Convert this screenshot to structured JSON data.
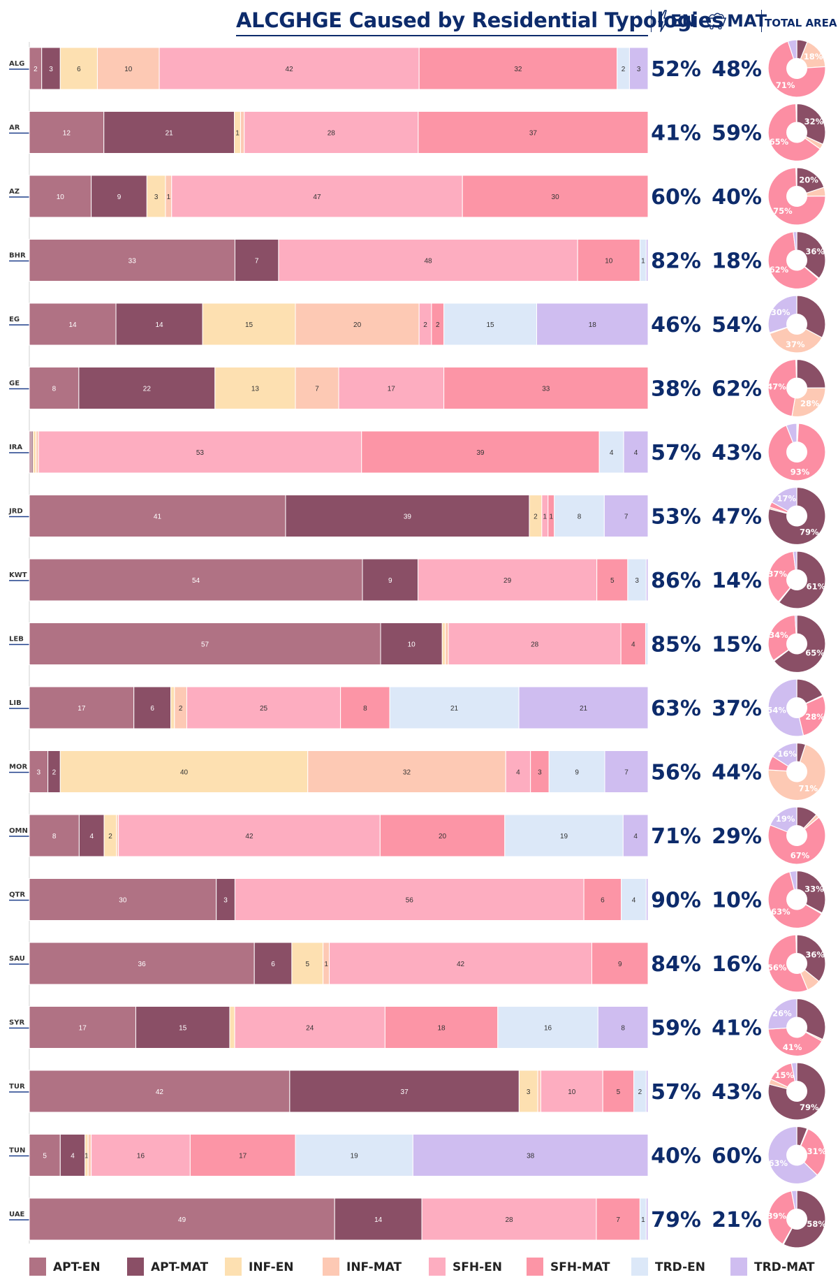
{
  "title": "ALCGHGE Caused by Residential Typologies",
  "header": {
    "en_label": "EN",
    "mat_label": "MAT",
    "total_label": "TOTAL AREA"
  },
  "chart_data": {
    "type": "bar",
    "orientation": "horizontal-stacked-100",
    "categories": [
      "ALG",
      "AR",
      "AZ",
      "BHR",
      "EG",
      "GE",
      "IRA",
      "JRD",
      "KWT",
      "LEB",
      "LIB",
      "MOR",
      "OMN",
      "QTR",
      "SAU",
      "SYR",
      "TUR",
      "TUN",
      "UAE"
    ],
    "series": [
      {
        "name": "APT-EN",
        "color": "#b07284",
        "values": [
          2,
          12,
          10,
          33,
          14,
          8,
          0.3,
          41,
          54,
          57,
          17,
          3,
          8,
          30,
          36,
          17,
          42,
          5,
          49
        ]
      },
      {
        "name": "APT-MAT",
        "color": "#8a4f66",
        "values": [
          3,
          21,
          9,
          7,
          14,
          22,
          0.3,
          39,
          9,
          10,
          6,
          2,
          4,
          3,
          6,
          15,
          37,
          4,
          14
        ]
      },
      {
        "name": "INF-EN",
        "color": "#fde0b1",
        "values": [
          6,
          1,
          3,
          0,
          15,
          13,
          0.5,
          2,
          0,
          0.5,
          0.6,
          40,
          2,
          0,
          5,
          0.8,
          3,
          0.5,
          0
        ]
      },
      {
        "name": "INF-MAT",
        "color": "#fdc9b4",
        "values": [
          10,
          0.6,
          1,
          0,
          20,
          7,
          0.4,
          0,
          0,
          0.5,
          2,
          32,
          0.3,
          0,
          1,
          0,
          0.5,
          0.5,
          0
        ]
      },
      {
        "name": "SFH-EN",
        "color": "#fdadc0",
        "values": [
          42,
          28,
          47,
          48,
          2,
          17,
          53,
          1,
          29,
          28,
          25,
          4,
          42,
          56,
          42,
          24,
          10,
          16,
          28
        ]
      },
      {
        "name": "SFH-MAT",
        "color": "#fc95a6",
        "values": [
          32,
          37,
          30,
          10,
          2,
          33,
          39,
          1,
          5,
          4,
          8,
          3,
          20,
          6,
          9,
          18,
          5,
          17,
          7
        ]
      },
      {
        "name": "TRD-EN",
        "color": "#dce8f8",
        "values": [
          2,
          0,
          0,
          1,
          15,
          0,
          4,
          8,
          3,
          0.4,
          21,
          9,
          19,
          4,
          0,
          16,
          2,
          19,
          1
        ]
      },
      {
        "name": "TRD-MAT",
        "color": "#cfbdf0",
        "values": [
          3,
          0,
          0,
          0.3,
          18,
          0,
          4,
          7,
          0.3,
          0,
          21,
          7,
          4,
          0.3,
          0,
          8,
          0.3,
          38,
          0.3
        ]
      }
    ],
    "data_labels": [
      [
        "2",
        "3",
        "6",
        "10",
        "42",
        "32",
        "2",
        "3"
      ],
      [
        "12",
        "21",
        "1",
        "",
        "28",
        "37",
        "",
        ""
      ],
      [
        "10",
        "9",
        "3",
        "1",
        "47",
        "30",
        "",
        ""
      ],
      [
        "33",
        "7",
        "",
        "",
        "48",
        "10",
        "1",
        ""
      ],
      [
        "14",
        "14",
        "15",
        "20",
        "2",
        "2",
        "15",
        "18"
      ],
      [
        "8",
        "22",
        "13",
        "7",
        "17",
        "33",
        "",
        ""
      ],
      [
        "",
        "",
        "",
        "",
        "53",
        "39",
        "4",
        "4"
      ],
      [
        "41",
        "39",
        "2",
        "",
        "1",
        "1",
        "8",
        "7"
      ],
      [
        "54",
        "9",
        "",
        "",
        "29",
        "5",
        "3",
        ""
      ],
      [
        "57",
        "10",
        "",
        "",
        "28",
        "4",
        "",
        ""
      ],
      [
        "17",
        "6",
        "",
        "2",
        "25",
        "8",
        "21",
        "21"
      ],
      [
        "3",
        "2",
        "40",
        "32",
        "4",
        "3",
        "9",
        "7"
      ],
      [
        "8",
        "4",
        "2",
        "",
        "42",
        "20",
        "19",
        "4"
      ],
      [
        "30",
        "3",
        "",
        "",
        "56",
        "6",
        "4",
        ""
      ],
      [
        "36",
        "6",
        "5",
        "1",
        "42",
        "9",
        "",
        ""
      ],
      [
        "17",
        "15",
        "",
        "",
        "24",
        "18",
        "16",
        "8"
      ],
      [
        "42",
        "37",
        "3",
        "",
        "10",
        "5",
        "2",
        ""
      ],
      [
        "5",
        "4",
        "1",
        "",
        "16",
        "17",
        "19",
        "38"
      ],
      [
        "49",
        "14",
        "",
        "",
        "28",
        "7",
        "1",
        ""
      ]
    ],
    "en_percent": [
      "52%",
      "41%",
      "60%",
      "82%",
      "46%",
      "38%",
      "57%",
      "53%",
      "86%",
      "85%",
      "63%",
      "56%",
      "71%",
      "90%",
      "84%",
      "59%",
      "57%",
      "40%",
      "79%"
    ],
    "mat_percent": [
      "48%",
      "59%",
      "40%",
      "18%",
      "54%",
      "62%",
      "43%",
      "47%",
      "14%",
      "15%",
      "37%",
      "44%",
      "29%",
      "10%",
      "16%",
      "41%",
      "43%",
      "60%",
      "21%"
    ],
    "total_area": {
      "categories": [
        "APT",
        "INF",
        "SFH",
        "TRD"
      ],
      "colors": [
        "#8a4f66",
        "#fdc9b4",
        "#fc8ea3",
        "#cfbdf0"
      ],
      "values": [
        [
          6,
          18,
          71,
          5
        ],
        [
          32,
          3,
          65,
          0.5
        ],
        [
          20,
          5,
          75,
          0.5
        ],
        [
          36,
          0.5,
          62,
          2
        ],
        [
          33,
          37,
          0.5,
          30
        ],
        [
          25,
          28,
          47,
          0.5
        ],
        [
          0.5,
          0.5,
          93,
          6
        ],
        [
          79,
          1,
          3,
          17
        ],
        [
          61,
          0.5,
          37,
          2
        ],
        [
          65,
          0.5,
          34,
          1
        ],
        [
          18,
          0.5,
          28,
          54
        ],
        [
          5,
          71,
          8,
          16
        ],
        [
          12,
          2,
          67,
          19
        ],
        [
          33,
          0.5,
          63,
          4
        ],
        [
          36,
          8,
          56,
          0.5
        ],
        [
          32,
          1,
          41,
          26
        ],
        [
          79,
          3,
          15,
          3
        ],
        [
          6,
          0.5,
          31,
          63
        ],
        [
          58,
          0.5,
          39,
          3
        ]
      ],
      "labels": [
        [
          "",
          "18%",
          "71%",
          ""
        ],
        [
          "32%",
          "",
          "65%",
          ""
        ],
        [
          "20%",
          "",
          "75%",
          ""
        ],
        [
          "36%",
          "",
          "62%",
          ""
        ],
        [
          "",
          "37%",
          "",
          "30%"
        ],
        [
          "",
          "28%",
          "47%",
          ""
        ],
        [
          "",
          "",
          "93%",
          ""
        ],
        [
          "79%",
          "",
          "",
          "17%"
        ],
        [
          "61%",
          "",
          "37%",
          ""
        ],
        [
          "65%",
          "",
          "34%",
          ""
        ],
        [
          "",
          "",
          "28%",
          "54%"
        ],
        [
          "",
          "71%",
          "",
          "16%"
        ],
        [
          "",
          "",
          "67%",
          "19%"
        ],
        [
          "33%",
          "",
          "63%",
          ""
        ],
        [
          "36%",
          "",
          "56%",
          ""
        ],
        [
          "",
          "",
          "41%",
          "26%"
        ],
        [
          "79%",
          "",
          "15%",
          ""
        ],
        [
          "",
          "",
          "31%",
          "63%"
        ],
        [
          "58%",
          "",
          "39%",
          ""
        ]
      ]
    },
    "legend": [
      "APT-EN",
      "APT-MAT",
      "INF-EN",
      "INF-MAT",
      "SFH-EN",
      "SFH-MAT",
      "TRD-EN",
      "TRD-MAT"
    ],
    "legend_placement": "bottom",
    "grid": false
  }
}
